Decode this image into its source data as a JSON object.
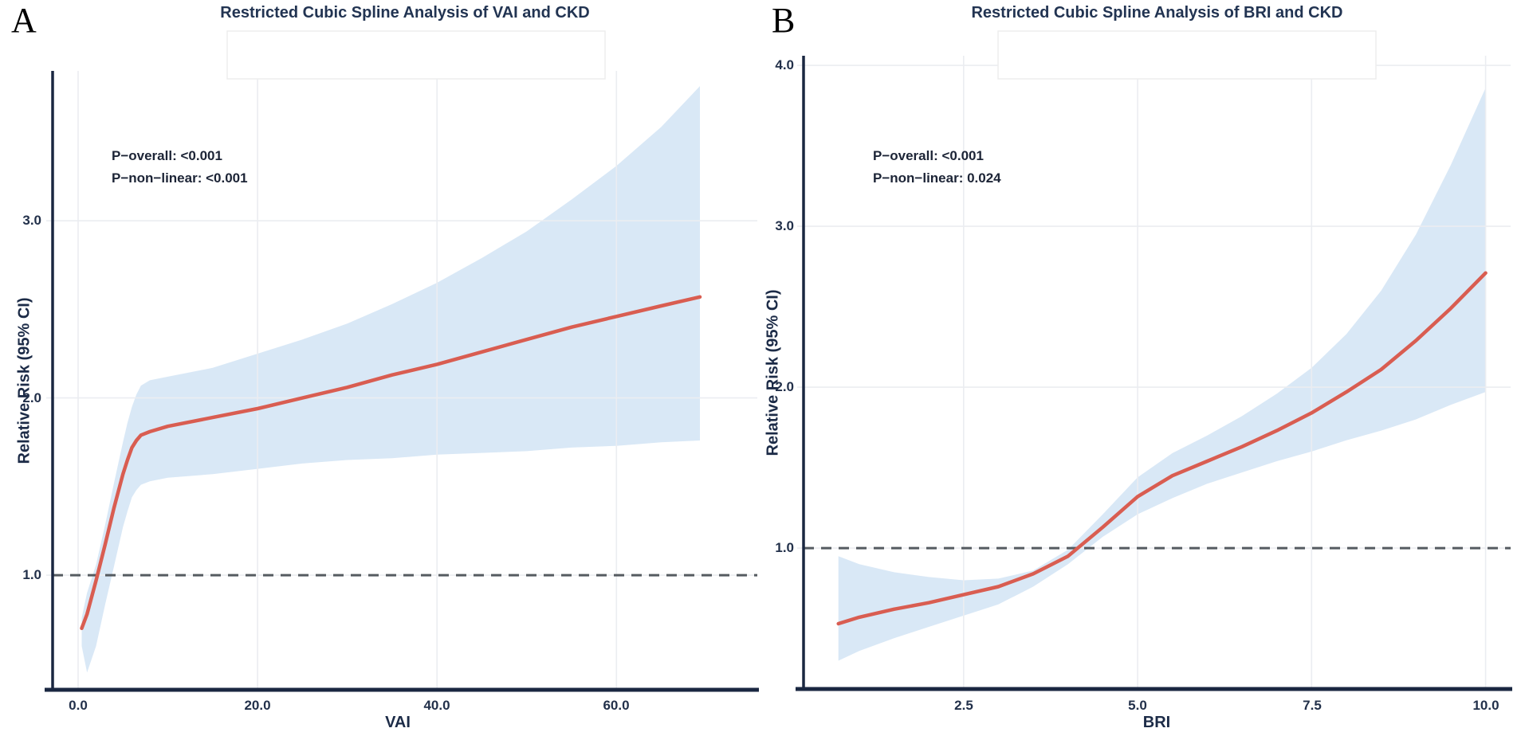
{
  "colors": {
    "title_text": "#223452",
    "tick_text": "#22304a",
    "annotation_text": "#1c2436",
    "spine": "#1a2741",
    "gridline": "#ebedf1",
    "legend_box_border": "#ededed",
    "ci_band": "#d9e8f6",
    "spline_line": "#d95d51",
    "reference_dash": "#555b60",
    "background": "#ffffff"
  },
  "chart_data": [
    {
      "type": "line",
      "panel_label": "A",
      "title": "Restricted Cubic Spline Analysis of VAI and CKD",
      "xlabel": "VAI",
      "ylabel": "Relative Risk (95% CI)",
      "annotations": [
        "P−overall: <0.001",
        "P−non−linear: <0.001"
      ],
      "x_ticks": [
        0,
        20,
        40,
        60
      ],
      "x_tick_labels": [
        "0.0",
        "20.0",
        "40.0",
        "60.0"
      ],
      "y_ticks": [
        1,
        2,
        3
      ],
      "y_tick_labels": [
        "1.0",
        "2.0",
        "3.0"
      ],
      "x_range": [
        -2.84,
        75.7
      ],
      "y_range": [
        0.353,
        3.846
      ],
      "ref_line_y": 1.0,
      "grid": true,
      "legend_position": "top-empty-box",
      "series": [
        {
          "name": "Relative Risk",
          "x": [
            0.4,
            1.0,
            2.0,
            3.0,
            4.0,
            5.0,
            5.5,
            6.0,
            6.5,
            7.0,
            8.0,
            10.0,
            15.0,
            20.0,
            25.0,
            30.0,
            35.0,
            40.0,
            45.0,
            50.0,
            55.0,
            60.0,
            65.0,
            69.3
          ],
          "y": [
            0.7,
            0.78,
            0.97,
            1.17,
            1.38,
            1.57,
            1.65,
            1.72,
            1.76,
            1.79,
            1.81,
            1.84,
            1.89,
            1.94,
            2.0,
            2.06,
            2.13,
            2.19,
            2.26,
            2.33,
            2.4,
            2.46,
            2.52,
            2.57
          ],
          "ci_upper": [
            0.76,
            0.9,
            1.06,
            1.28,
            1.52,
            1.75,
            1.86,
            1.95,
            2.02,
            2.07,
            2.1,
            2.12,
            2.17,
            2.25,
            2.33,
            2.42,
            2.53,
            2.65,
            2.79,
            2.94,
            3.12,
            3.31,
            3.53,
            3.76
          ],
          "ci_lower": [
            0.6,
            0.45,
            0.6,
            0.83,
            1.05,
            1.27,
            1.36,
            1.44,
            1.48,
            1.51,
            1.53,
            1.55,
            1.57,
            1.6,
            1.63,
            1.65,
            1.66,
            1.68,
            1.69,
            1.7,
            1.72,
            1.73,
            1.75,
            1.76
          ]
        }
      ]
    },
    {
      "type": "line",
      "panel_label": "B",
      "title": "Restricted Cubic Spline Analysis of BRI and CKD",
      "xlabel": "BRI",
      "ylabel": "Relative Risk (95% CI)",
      "annotations": [
        "P−overall: <0.001",
        "P−non−linear: 0.024"
      ],
      "x_ticks": [
        2.5,
        5.0,
        7.5,
        10.0
      ],
      "x_tick_labels": [
        "2.5",
        "5.0",
        "7.5",
        "10.0"
      ],
      "y_ticks": [
        1,
        2,
        3,
        4
      ],
      "y_tick_labels": [
        "1.0",
        "2.0",
        "3.0",
        "4.0"
      ],
      "x_range": [
        0.2,
        10.36
      ],
      "y_range": [
        0.124,
        4.06
      ],
      "ref_line_y": 1.0,
      "grid": true,
      "legend_position": "top-empty-box",
      "series": [
        {
          "name": "Relative Risk",
          "x": [
            0.7,
            1.0,
            1.5,
            2.0,
            2.5,
            3.0,
            3.5,
            4.0,
            4.5,
            5.0,
            5.5,
            6.0,
            6.5,
            7.0,
            7.5,
            8.0,
            8.5,
            9.0,
            9.5,
            10.0
          ],
          "y": [
            0.53,
            0.57,
            0.62,
            0.66,
            0.71,
            0.76,
            0.84,
            0.95,
            1.13,
            1.32,
            1.45,
            1.54,
            1.63,
            1.73,
            1.84,
            1.97,
            2.11,
            2.29,
            2.49,
            2.71
          ],
          "ci_upper": [
            0.95,
            0.9,
            0.85,
            0.82,
            0.8,
            0.81,
            0.86,
            0.99,
            1.21,
            1.44,
            1.59,
            1.7,
            1.82,
            1.96,
            2.12,
            2.33,
            2.6,
            2.95,
            3.38,
            3.86
          ],
          "ci_lower": [
            0.3,
            0.36,
            0.44,
            0.51,
            0.58,
            0.65,
            0.76,
            0.9,
            1.07,
            1.21,
            1.31,
            1.4,
            1.47,
            1.54,
            1.6,
            1.67,
            1.73,
            1.8,
            1.89,
            1.97
          ]
        }
      ]
    }
  ]
}
